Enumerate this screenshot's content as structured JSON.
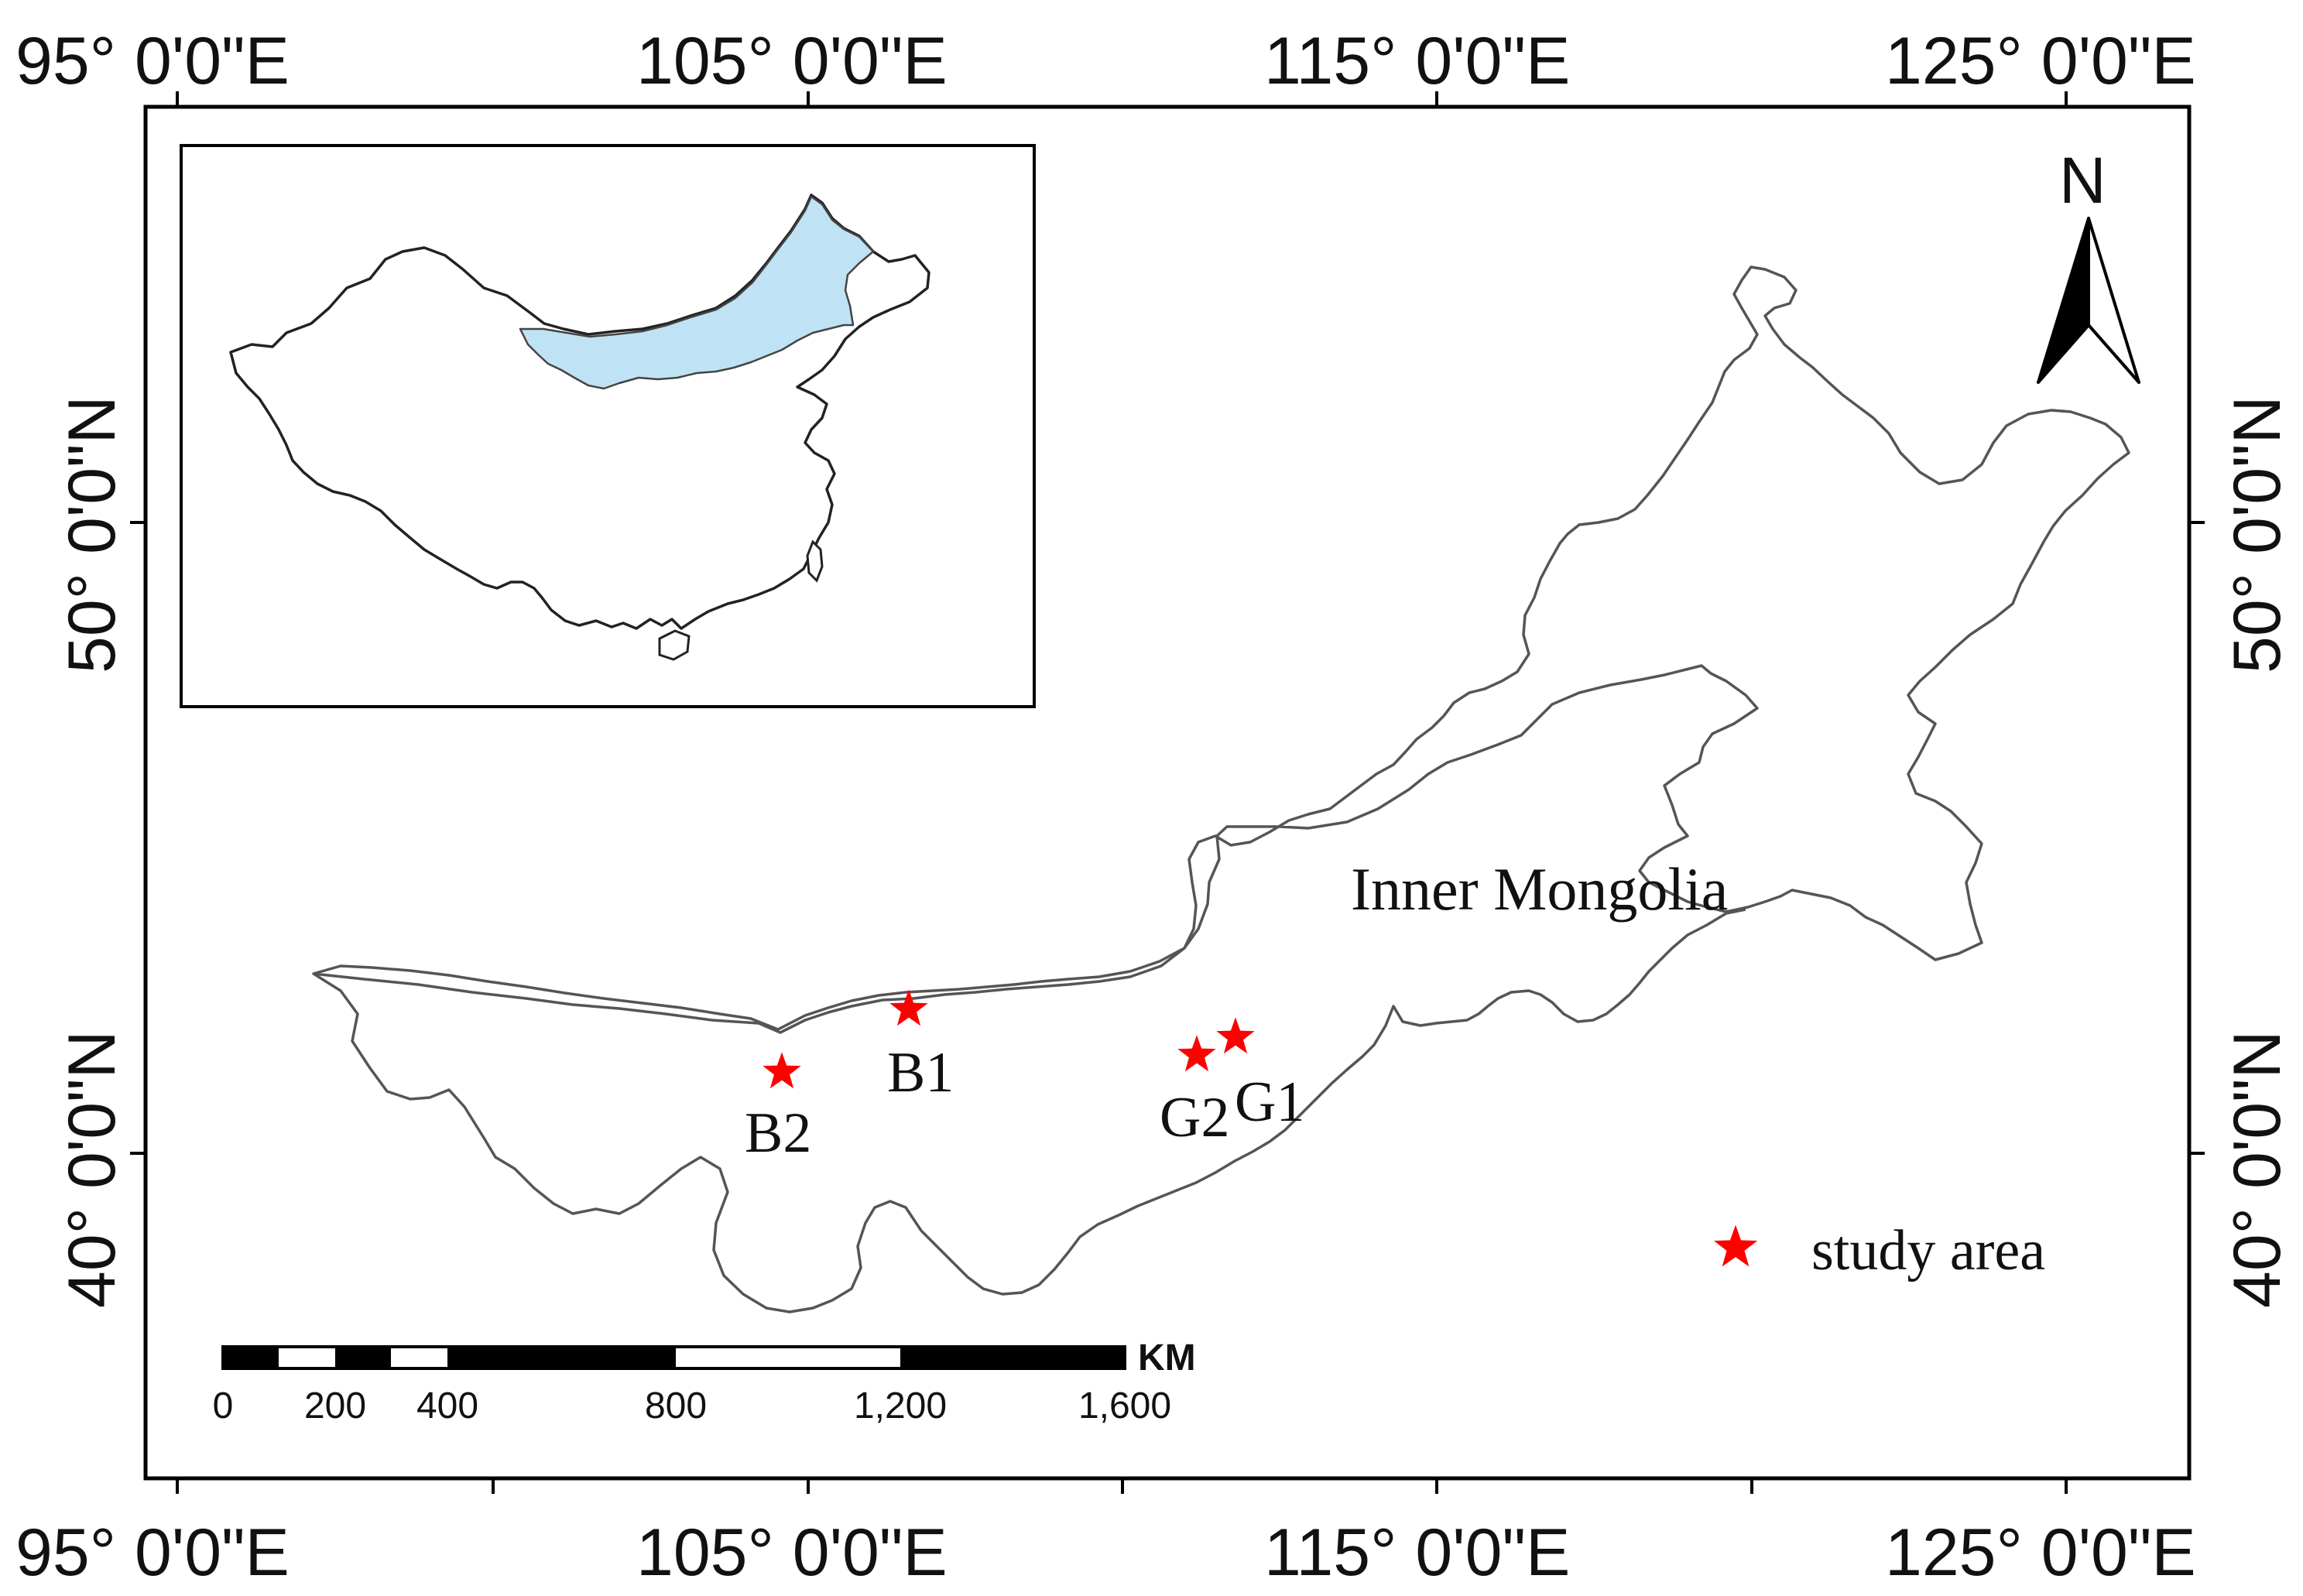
{
  "map": {
    "lon_labels": [
      "95° 0'0\"E",
      "105° 0'0\"E",
      "115° 0'0\"E",
      "125° 0'0\"E"
    ],
    "lat_labels": [
      "50° 0'0\"N",
      "40° 0'0\"N"
    ],
    "region_label": "Inner Mongolia",
    "north_label": "N",
    "sites": [
      {
        "id": "B1",
        "label": "B1"
      },
      {
        "id": "B2",
        "label": "B2"
      },
      {
        "id": "G1",
        "label": "G1"
      },
      {
        "id": "G2",
        "label": "G2"
      }
    ],
    "legend": {
      "label": "study area",
      "symbol": "red-star",
      "color": "#ff0000"
    },
    "inset": {
      "highlight_color": "#bfe3f4"
    },
    "scale_bar": {
      "unit": "KM",
      "ticks": [
        "0",
        "200",
        "400",
        "800",
        "1,200",
        "1,600"
      ]
    }
  }
}
